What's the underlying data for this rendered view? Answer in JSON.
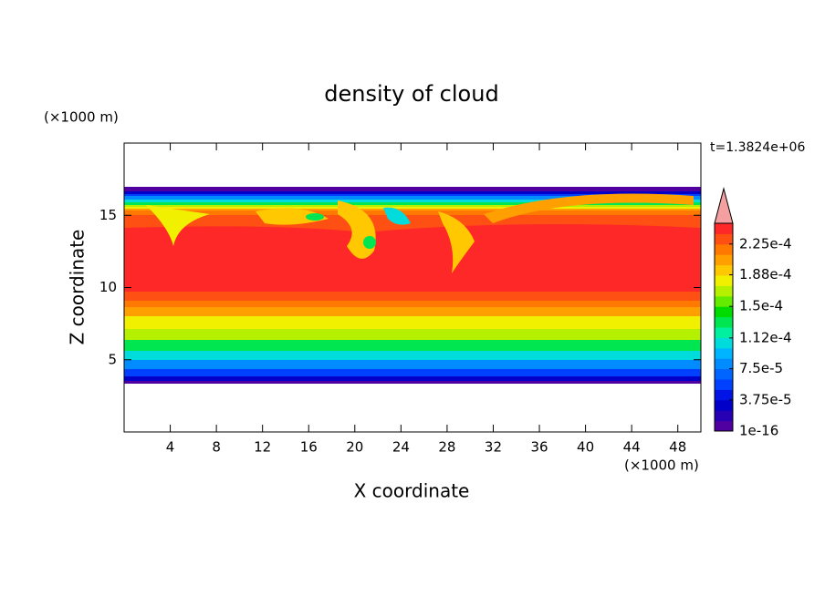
{
  "chart_data": {
    "type": "contour",
    "title": "density of cloud",
    "x_label": "X coordinate",
    "y_label": "Z coordinate",
    "x_unit": "(×1000 m)",
    "y_unit": "(×1000 m)",
    "annotation": "t=1.3824e+06",
    "xlim": [
      0,
      50
    ],
    "ylim": [
      0,
      20
    ],
    "xticks": [
      4,
      8,
      12,
      16,
      20,
      24,
      28,
      32,
      36,
      40,
      44,
      48
    ],
    "yticks": [
      5,
      10,
      15
    ],
    "colorbar": {
      "clim": [
        1e-16,
        0.00025
      ],
      "colors": [
        "#5000a0",
        "#2800b4",
        "#0000c8",
        "#0014e6",
        "#0040ff",
        "#0064ff",
        "#008cff",
        "#00b4ff",
        "#00dcdc",
        "#00f0a0",
        "#00e650",
        "#00dc00",
        "#64eb00",
        "#b4f000",
        "#f0f000",
        "#ffc800",
        "#ffa000",
        "#ff7800",
        "#ff5014",
        "#ff2828"
      ],
      "extend_color": "#f4a0a0",
      "ticks": [
        {
          "value": 1e-16,
          "label": "1e-16"
        },
        {
          "value": 3.75e-05,
          "label": "3.75e-5"
        },
        {
          "value": 7.5e-05,
          "label": "7.5e-5"
        },
        {
          "value": 0.000112,
          "label": "1.12e-4"
        },
        {
          "value": 0.00015,
          "label": "1.5e-4"
        },
        {
          "value": 0.000188,
          "label": "1.88e-4"
        },
        {
          "value": 0.000225,
          "label": "2.25e-4"
        }
      ]
    }
  }
}
